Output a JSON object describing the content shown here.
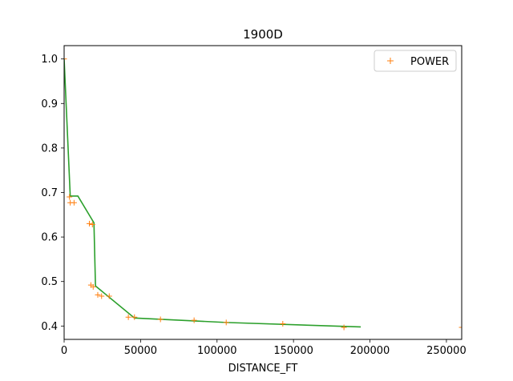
{
  "chart_data": {
    "type": "scatter",
    "title": "1900D",
    "xlabel": "DISTANCE_FT",
    "ylabel": "",
    "xlim": [
      0,
      260000
    ],
    "ylim": [
      0.37,
      1.03
    ],
    "xticks": [
      0,
      50000,
      100000,
      150000,
      200000,
      250000
    ],
    "xtick_labels": [
      "0",
      "50000",
      "100000",
      "150000",
      "200000",
      "250000"
    ],
    "yticks": [
      0.4,
      0.5,
      0.6,
      0.7,
      0.8,
      0.9,
      1.0
    ],
    "ytick_labels": [
      "0.4",
      "0.5",
      "0.6",
      "0.7",
      "0.8",
      "0.9",
      "1.0"
    ],
    "grid": false,
    "legend_position": "top-right",
    "series": [
      {
        "name": "POWER",
        "kind": "scatter",
        "marker": "+",
        "color": "#ff7f0e",
        "points": [
          [
            0,
            1.0
          ],
          [
            3500,
            0.69
          ],
          [
            4000,
            0.677
          ],
          [
            6500,
            0.677
          ],
          [
            16500,
            0.63
          ],
          [
            18500,
            0.628
          ],
          [
            17500,
            0.492
          ],
          [
            19000,
            0.488
          ],
          [
            22000,
            0.47
          ],
          [
            24500,
            0.467
          ],
          [
            29500,
            0.467
          ],
          [
            42000,
            0.42
          ],
          [
            46000,
            0.42
          ],
          [
            63000,
            0.415
          ],
          [
            85000,
            0.413
          ],
          [
            106000,
            0.408
          ],
          [
            143000,
            0.405
          ],
          [
            183000,
            0.397
          ],
          [
            260000,
            0.397
          ]
        ]
      },
      {
        "kind": "line",
        "color": "#2ca02c",
        "points": [
          [
            0,
            1.0
          ],
          [
            4000,
            0.692
          ],
          [
            9000,
            0.692
          ],
          [
            19500,
            0.632
          ],
          [
            20500,
            0.49
          ],
          [
            46000,
            0.418
          ],
          [
            106000,
            0.408
          ],
          [
            194000,
            0.398
          ]
        ]
      }
    ]
  }
}
